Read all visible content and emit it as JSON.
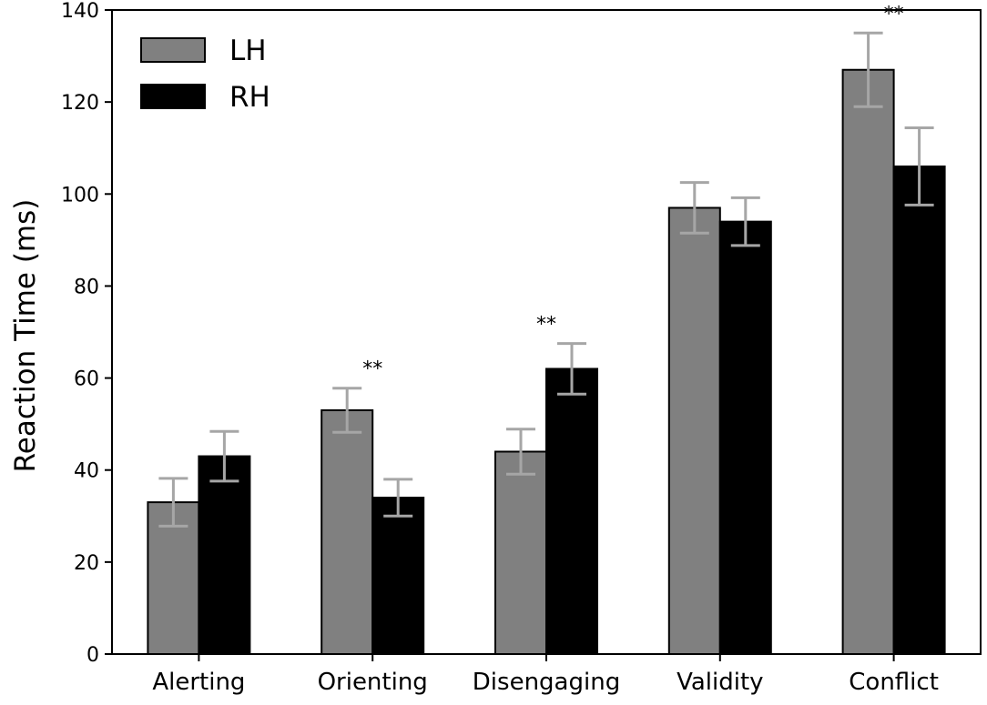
{
  "chart_data": {
    "type": "bar",
    "categories": [
      "Alerting",
      "Orienting",
      "Disengaging",
      "Validity",
      "Conflict"
    ],
    "series": [
      {
        "name": "LH",
        "color": "#808080",
        "values": [
          33,
          53,
          44,
          97,
          127
        ],
        "error": [
          5.2,
          4.8,
          4.9,
          5.5,
          8.0
        ],
        "error_color": "#a6a6a6"
      },
      {
        "name": "RH",
        "color": "#000000",
        "values": [
          43,
          34,
          62,
          94,
          106
        ],
        "error": [
          5.4,
          4.0,
          5.5,
          5.2,
          8.4
        ],
        "error_color": "#a6a6a6"
      }
    ],
    "significance": [
      {
        "category": "Orienting",
        "label": "**"
      },
      {
        "category": "Disengaging",
        "label": "**"
      },
      {
        "category": "Conflict",
        "label": "**"
      }
    ],
    "ylabel": "Reaction Time (ms)",
    "xlabel": "",
    "ylim": [
      0,
      140
    ],
    "yticks": [
      0,
      20,
      40,
      60,
      80,
      100,
      120,
      140
    ],
    "grid": false,
    "legend_position": "top-left"
  }
}
